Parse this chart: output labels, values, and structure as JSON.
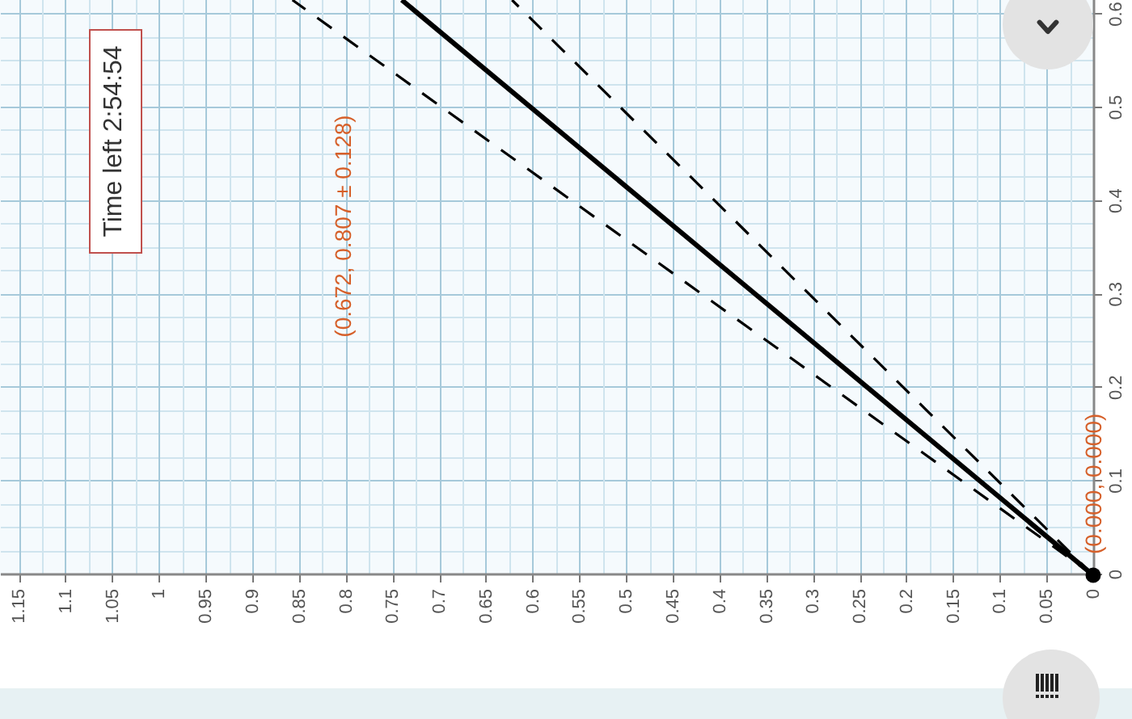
{
  "chart_data": {
    "type": "line",
    "xlim": [
      1.17,
      0
    ],
    "ylim": [
      0,
      0.616
    ],
    "xticks": [
      0,
      {
        "value": 0.025,
        "label": null
      },
      0.05,
      {
        "value": 0.075,
        "label": null
      },
      0.1,
      {
        "value": 0.125,
        "label": null
      },
      0.15,
      {
        "value": 0.175,
        "label": null
      },
      0.2,
      {
        "value": 0.225,
        "label": null
      },
      0.25,
      {
        "value": 0.275,
        "label": null
      },
      0.3,
      {
        "value": 0.325,
        "label": null
      },
      0.35,
      {
        "value": 0.375,
        "label": null
      },
      0.4,
      {
        "value": 0.425,
        "label": null
      },
      0.45,
      {
        "value": 0.475,
        "label": null
      },
      0.5,
      {
        "value": 0.525,
        "label": null
      },
      0.55,
      {
        "value": 0.575,
        "label": null
      },
      0.6,
      {
        "value": 0.625,
        "label": null
      },
      0.65,
      {
        "value": 0.675,
        "label": null
      },
      0.7,
      {
        "value": 0.725,
        "label": null
      },
      0.75,
      {
        "value": 0.775,
        "label": null
      },
      0.8,
      {
        "value": 0.825,
        "label": null
      },
      0.85,
      {
        "value": 0.875,
        "label": null
      },
      0.9,
      {
        "value": 0.925,
        "label": null
      },
      0.95,
      {
        "value": 0.975,
        "label": null
      },
      1,
      {
        "value": 1.025,
        "label": null
      },
      1.05,
      {
        "value": 1.075,
        "label": null
      },
      1.1,
      {
        "value": 1.125,
        "label": null
      },
      1.15
    ],
    "yticks": [
      0,
      {
        "value": 0.025,
        "label": null
      },
      {
        "value": 0.05,
        "label": null
      },
      {
        "value": 0.075,
        "label": null
      },
      0.1,
      {
        "value": 0.125,
        "label": null
      },
      {
        "value": 0.15,
        "label": null
      },
      {
        "value": 0.175,
        "label": null
      },
      0.2,
      {
        "value": 0.225,
        "label": null
      },
      {
        "value": 0.25,
        "label": null
      },
      {
        "value": 0.275,
        "label": null
      },
      0.3,
      {
        "value": 0.325,
        "label": null
      },
      {
        "value": 0.35,
        "label": null
      },
      {
        "value": 0.375,
        "label": null
      },
      0.4,
      {
        "value": 0.425,
        "label": null
      },
      {
        "value": 0.45,
        "label": null
      },
      {
        "value": 0.475,
        "label": null
      },
      0.5,
      {
        "value": 0.525,
        "label": null
      },
      {
        "value": 0.55,
        "label": null
      },
      {
        "value": 0.575,
        "label": null
      },
      0.6
    ],
    "grid": true,
    "series": [
      {
        "color": "#000000",
        "line_style": "solid",
        "x": [
          0,
          0.74
        ],
        "values": [
          0,
          0.616
        ]
      },
      {
        "color": "#000000",
        "line_style": "dashed",
        "x": [
          0,
          0.857
        ],
        "values": [
          0,
          0.616
        ]
      },
      {
        "color": "#000000",
        "line_style": "dashed",
        "x": [
          0,
          0.622
        ],
        "values": [
          0,
          0.616
        ]
      },
      {
        "type": "scatter",
        "color": "#000000",
        "marker": "circle",
        "x": [
          0
        ],
        "values": [
          0
        ],
        "value_labels": [
          "(0.000, 0.000)"
        ]
      }
    ],
    "annotations": [
      "(0.672, 0.807 ± 0.128)",
      "Time left 2:54:54"
    ]
  }
}
